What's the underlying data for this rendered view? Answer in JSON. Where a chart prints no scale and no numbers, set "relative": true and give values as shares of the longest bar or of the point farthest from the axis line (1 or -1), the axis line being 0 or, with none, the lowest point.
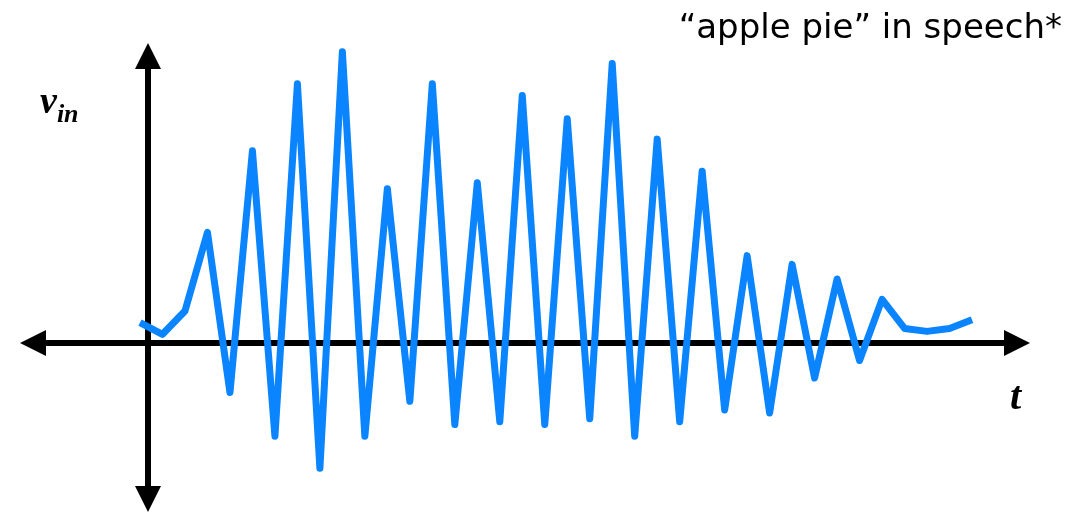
{
  "chart_data": {
    "type": "line",
    "relative": true,
    "xlabel": "t",
    "ylabel": "v$_{in}$",
    "annotations": [
      "“apple pie” in speech*"
    ],
    "legend": false,
    "marker": "none",
    "line_style": "solid",
    "categories": [
      null,
      null,
      null,
      null,
      null,
      null,
      null,
      null,
      null,
      null,
      null,
      null,
      null,
      null,
      null,
      null,
      null,
      null,
      null,
      null,
      null,
      null,
      null,
      null,
      null,
      null,
      null,
      null,
      null,
      null,
      null,
      null,
      null,
      null,
      null,
      null,
      null,
      null
    ],
    "series": [
      {
        "color": "#0a84ff",
        "values": [
          0.07,
          0.03,
          0.11,
          0.38,
          -0.17,
          0.66,
          -0.32,
          0.89,
          -0.43,
          1,
          -0.32,
          0.53,
          -0.2,
          0.89,
          -0.28,
          0.55,
          -0.27,
          0.85,
          -0.28,
          0.77,
          -0.26,
          0.96,
          -0.32,
          0.7,
          -0.27,
          0.59,
          -0.23,
          0.3,
          -0.24,
          0.27,
          -0.12,
          0.22,
          -0.06,
          0.15,
          0.05,
          0.04,
          0.05,
          0.08
        ]
      }
    ]
  }
}
